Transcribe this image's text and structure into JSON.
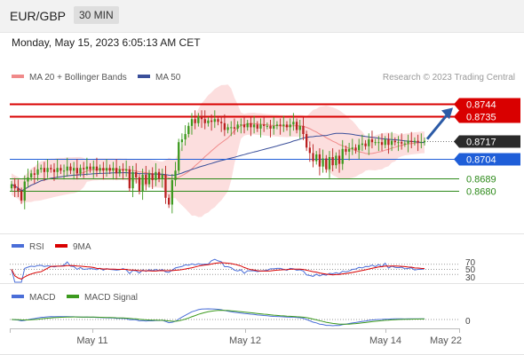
{
  "header": {
    "pair": "EUR/GBP",
    "timeframe": "30 MIN",
    "datetime": "Monday, May 15, 2023 6:05:13 AM CET"
  },
  "legend": {
    "ma20": "MA 20 + Bollinger Bands",
    "ma50": "MA 50",
    "credit": "Research © 2023 Trading Central"
  },
  "colors": {
    "up": "#3c9a1e",
    "down": "#ba2020",
    "ma20": "#f08a8a",
    "bb_fill": "#fbd6d6",
    "ma50": "#3a4f9a",
    "resistance": "#d90000",
    "pivot": "#1f5ed8",
    "support": "#2d8a1a",
    "arrow": "#2b5aa6"
  },
  "chart_data": [
    {
      "type": "candlestick",
      "name": "price",
      "ylim": [
        0.8652,
        0.8758
      ],
      "x_ticks": [
        "May 11",
        "May 12",
        "May 14",
        "May 22"
      ],
      "levels": [
        {
          "value": 0.8744,
          "label": "0.8744",
          "kind": "resistance"
        },
        {
          "value": 0.8735,
          "label": "0.8735",
          "kind": "resistance"
        },
        {
          "value": 0.8717,
          "label": "0.8717",
          "kind": "current"
        },
        {
          "value": 0.8704,
          "label": "0.8704",
          "kind": "pivot"
        },
        {
          "value": 0.8689,
          "label": "0.8689",
          "kind": "support"
        },
        {
          "value": 0.868,
          "label": "0.8680",
          "kind": "support"
        }
      ],
      "closes": [
        0.8685,
        0.8682,
        0.868,
        0.8673,
        0.8687,
        0.869,
        0.8693,
        0.8692,
        0.8696,
        0.8697,
        0.8694,
        0.8697,
        0.8696,
        0.8694,
        0.8697,
        0.8695,
        0.8695,
        0.8698,
        0.8695,
        0.8697,
        0.8693,
        0.8697,
        0.8696,
        0.8698,
        0.8696,
        0.8698,
        0.8695,
        0.8697,
        0.8695,
        0.8697,
        0.8695,
        0.8697,
        0.8693,
        0.8696,
        0.8695,
        0.8696,
        0.8682,
        0.8694,
        0.869,
        0.868,
        0.8692,
        0.8685,
        0.8693,
        0.8688,
        0.8694,
        0.8689,
        0.8692,
        0.8675,
        0.867,
        0.8688,
        0.8695,
        0.8716,
        0.8718,
        0.8722,
        0.8728,
        0.8733,
        0.873,
        0.8735,
        0.8733,
        0.873,
        0.8732,
        0.8731,
        0.8733,
        0.8731,
        0.873,
        0.8725,
        0.8727,
        0.8727,
        0.8726,
        0.8729,
        0.8729,
        0.8727,
        0.873,
        0.8727,
        0.8729,
        0.8726,
        0.8729,
        0.8728,
        0.8728,
        0.8726,
        0.8728,
        0.8729,
        0.8728,
        0.8729,
        0.8727,
        0.8729,
        0.8731,
        0.8725,
        0.8728,
        0.8722,
        0.8712,
        0.8708,
        0.8702,
        0.8707,
        0.8698,
        0.8704,
        0.8696,
        0.8705,
        0.8699,
        0.8706,
        0.87,
        0.8711,
        0.8709,
        0.8711,
        0.8712,
        0.871,
        0.8714,
        0.8715,
        0.8713,
        0.8718,
        0.8716,
        0.8716,
        0.8716,
        0.8714,
        0.8718,
        0.8714,
        0.8717,
        0.8716,
        0.8716,
        0.8715,
        0.8715,
        0.8717,
        0.8716,
        0.8717,
        0.8716,
        0.8716,
        0.8717
      ]
    },
    {
      "type": "line",
      "name": "rsi",
      "legend": [
        "RSI",
        "9MA"
      ],
      "levels": [
        70,
        50,
        30
      ],
      "level_labels": [
        "70",
        "50",
        "30"
      ]
    },
    {
      "type": "line",
      "name": "macd",
      "legend": [
        "MACD",
        "MACD Signal"
      ],
      "levels": [
        0
      ],
      "level_labels": [
        "0"
      ]
    }
  ]
}
